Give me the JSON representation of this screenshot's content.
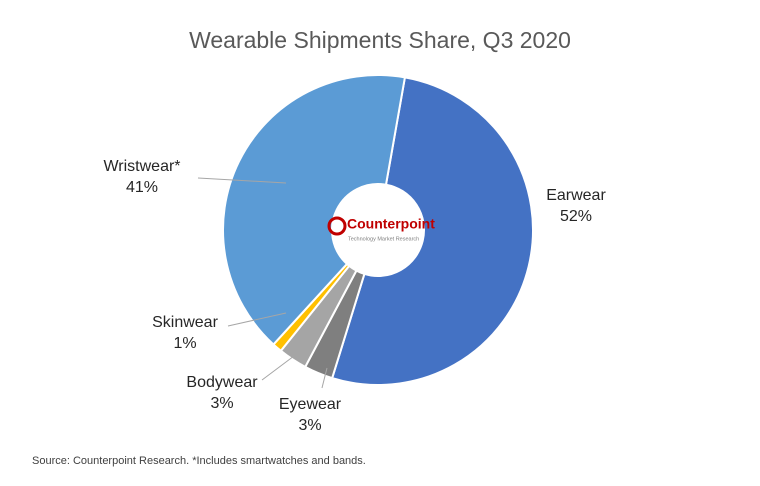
{
  "chart_data": {
    "type": "donut",
    "title": "Wearable Shipments Share, Q3 2020",
    "categories": [
      "Earwear",
      "Eyewear",
      "Bodywear",
      "Skinwear",
      "Wristwear*"
    ],
    "values": [
      52,
      3,
      3,
      1,
      41
    ],
    "value_labels": [
      "52%",
      "3%",
      "3%",
      "1%",
      "41%"
    ],
    "colors": [
      "#4472c4",
      "#7f7f7f",
      "#a5a5a5",
      "#ffc000",
      "#5b9bd5"
    ],
    "logo": {
      "name": "Counterpoint",
      "tagline": "Technology Market Research"
    },
    "source": "Source: Counterpoint Research. *Includes smartwatches and bands."
  }
}
